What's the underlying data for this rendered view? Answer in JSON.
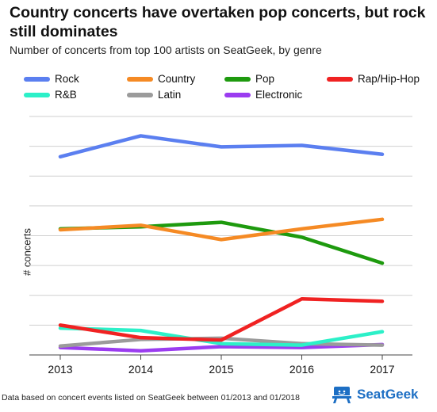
{
  "title": "Country concerts have overtaken pop concerts, but rock still dominates",
  "subtitle": "Number of concerts from top 100 artists on SeatGeek, by genre",
  "footer": "Data based on concert events listed on SeatGeek between 01/2013 and 01/2018",
  "brand": {
    "name": "SeatGeek",
    "icon": "seatgeek-chair-icon",
    "color": "#1d6fc4"
  },
  "chart_data": {
    "type": "line",
    "title": "Country concerts have overtaken pop concerts, but rock still dominates",
    "subtitle": "Number of concerts from top 100 artists on SeatGeek, by genre",
    "xlabel": "",
    "ylabel": "# concerts",
    "x": [
      "2013",
      "2014",
      "2015",
      "2016",
      "2017"
    ],
    "ylim": [
      0,
      8
    ],
    "y_gridlines": [
      0,
      1,
      2,
      3,
      4,
      5,
      6,
      7,
      8
    ],
    "y_tick_labels_shown": false,
    "grid": true,
    "legend_position": "top",
    "series": [
      {
        "name": "Rock",
        "color": "#5b7ff0",
        "values": [
          6.65,
          7.35,
          6.98,
          7.03,
          6.73
        ]
      },
      {
        "name": "Country",
        "color": "#f58a24",
        "values": [
          4.2,
          4.35,
          3.87,
          4.23,
          4.55
        ]
      },
      {
        "name": "Pop",
        "color": "#1e9a0e",
        "values": [
          4.23,
          4.3,
          4.45,
          3.95,
          3.08
        ]
      },
      {
        "name": "Rap/Hip-Hop",
        "color": "#f02222",
        "values": [
          1.0,
          0.58,
          0.5,
          1.88,
          1.8
        ]
      },
      {
        "name": "R&B",
        "color": "#2cf0c8",
        "values": [
          0.9,
          0.82,
          0.38,
          0.33,
          0.78
        ]
      },
      {
        "name": "Latin",
        "color": "#9b9b9b",
        "values": [
          0.3,
          0.52,
          0.56,
          0.38,
          0.33
        ]
      },
      {
        "name": "Electronic",
        "color": "#9b3cf0",
        "values": [
          0.25,
          0.14,
          0.28,
          0.25,
          0.35
        ]
      }
    ]
  }
}
